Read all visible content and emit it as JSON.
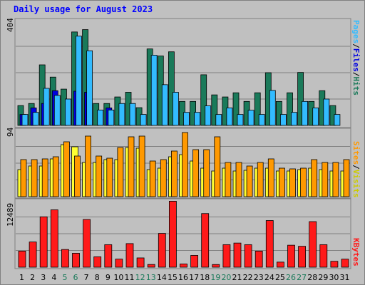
{
  "title": "Daily usage for August 2023",
  "colors": {
    "hits": "#1a7a5a",
    "files": "#0000e0",
    "pages": "#33bbff",
    "visits": "#ffff33",
    "sites": "#ff9900",
    "kbytes": "#ff1a1a",
    "weekday_label": "#000000",
    "weekend_label": "#1a7a5a"
  },
  "chart_data": [
    {
      "type": "bar",
      "name": "hits-files-pages",
      "ymax_label": "404",
      "ylim": [
        0,
        404
      ],
      "y_label_parts": [
        "Pages",
        "Files",
        "Hits"
      ],
      "separator": "/",
      "categories": [
        "1",
        "2",
        "3",
        "4",
        "5",
        "6",
        "7",
        "8",
        "9",
        "10",
        "11",
        "12",
        "13",
        "14",
        "15",
        "16",
        "17",
        "18",
        "19",
        "20",
        "21",
        "22",
        "23",
        "24",
        "25",
        "26",
        "27",
        "28",
        "29",
        "30",
        "31"
      ],
      "series": [
        {
          "name": "Hits",
          "values": [
            76,
            84,
            232,
            185,
            139,
            358,
            367,
            84,
            84,
            109,
            127,
            68,
            293,
            266,
            282,
            92,
            92,
            194,
            117,
            109,
            125,
            92,
            125,
            202,
            92,
            125,
            203,
            92,
            133,
            76,
            0
          ]
        },
        {
          "name": "Files",
          "values": [
            42,
            67,
            84,
            133,
            0,
            131,
            127,
            0,
            67,
            0,
            0,
            0,
            0,
            0,
            0,
            0,
            0,
            0,
            0,
            0,
            0,
            0,
            0,
            0,
            0,
            0,
            0,
            0,
            0,
            0,
            0
          ]
        },
        {
          "name": "Pages",
          "values": [
            42,
            50,
            142,
            115,
            101,
            342,
            286,
            59,
            59,
            84,
            84,
            42,
            269,
            156,
            127,
            50,
            50,
            75,
            42,
            67,
            42,
            58,
            42,
            134,
            42,
            50,
            92,
            67,
            101,
            42,
            0
          ]
        }
      ]
    },
    {
      "type": "bar",
      "name": "visits-sites",
      "ymax_label": "94",
      "ylim": [
        0,
        94
      ],
      "y_label_parts": [
        "Sites",
        "Visits"
      ],
      "separator": "/",
      "categories": [
        "1",
        "2",
        "3",
        "4",
        "5",
        "6",
        "7",
        "8",
        "9",
        "10",
        "11",
        "12",
        "13",
        "14",
        "15",
        "16",
        "17",
        "18",
        "19",
        "20",
        "21",
        "22",
        "23",
        "24",
        "25",
        "26",
        "27",
        "28",
        "29",
        "30",
        "31"
      ],
      "series": [
        {
          "name": "Visits",
          "values": [
            38,
            43,
            43,
            53,
            73,
            70,
            48,
            48,
            52,
            52,
            69,
            68,
            38,
            40,
            56,
            59,
            50,
            40,
            36,
            40,
            36,
            37,
            40,
            40,
            36,
            36,
            38,
            40,
            38,
            36,
            36
          ]
        },
        {
          "name": "Sites",
          "values": [
            52,
            52,
            53,
            56,
            77,
            57,
            85,
            57,
            54,
            69,
            84,
            85,
            50,
            52,
            64,
            90,
            66,
            66,
            84,
            48,
            48,
            43,
            48,
            53,
            40,
            39,
            40,
            52,
            48,
            48,
            52
          ]
        }
      ]
    },
    {
      "type": "bar",
      "name": "kbytes",
      "ymax_label": "12489",
      "ylim": [
        0,
        12489
      ],
      "y_label_parts": [
        "KBytes"
      ],
      "categories": [
        "1",
        "2",
        "3",
        "4",
        "5",
        "6",
        "7",
        "8",
        "9",
        "10",
        "11",
        "12",
        "13",
        "14",
        "15",
        "16",
        "17",
        "18",
        "19",
        "20",
        "21",
        "22",
        "23",
        "24",
        "25",
        "26",
        "27",
        "28",
        "29",
        "30",
        "31"
      ],
      "weekend_days": [
        "5",
        "6",
        "12",
        "13",
        "19",
        "20",
        "26",
        "27"
      ],
      "series": [
        {
          "name": "KBytes",
          "values": [
            3000,
            4700,
            9400,
            10700,
            3300,
            2600,
            8900,
            1940,
            4200,
            1510,
            4400,
            1730,
            510,
            6300,
            12300,
            610,
            2200,
            10000,
            500,
            4200,
            4500,
            4200,
            3000,
            8700,
            950,
            4100,
            3900,
            8500,
            4200,
            1100,
            1500
          ]
        }
      ]
    }
  ]
}
